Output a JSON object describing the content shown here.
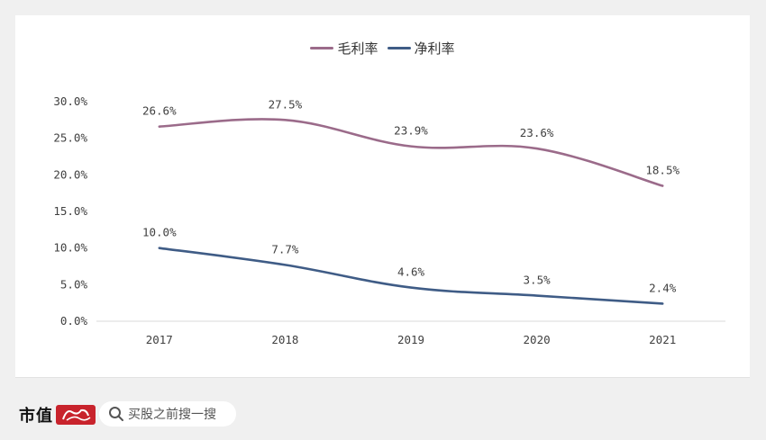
{
  "legend": {
    "gross_label": "毛利率",
    "net_label": "净利率"
  },
  "footer": {
    "brand": "市值",
    "search_placeholder": "买股之前搜一搜"
  },
  "colors": {
    "gross": "#9b6b8a",
    "net": "#3f5c86",
    "axis": "#d9d9d9",
    "text": "#404040",
    "brand_red": "#c8232c"
  },
  "icons": [
    "search-icon"
  ],
  "chart_data": {
    "type": "line",
    "categories": [
      "2017",
      "2018",
      "2019",
      "2020",
      "2021"
    ],
    "series": [
      {
        "name": "毛利率",
        "values": [
          26.6,
          27.5,
          23.9,
          23.6,
          18.5
        ],
        "labels": [
          "26.6%",
          "27.5%",
          "23.9%",
          "23.6%",
          "18.5%"
        ]
      },
      {
        "name": "净利率",
        "values": [
          10.0,
          7.7,
          4.6,
          3.5,
          2.4
        ],
        "labels": [
          "10.0%",
          "7.7%",
          "4.6%",
          "3.5%",
          "2.4%"
        ]
      }
    ],
    "yticks": [
      "0.0%",
      "5.0%",
      "10.0%",
      "15.0%",
      "20.0%",
      "25.0%",
      "30.0%"
    ],
    "ylim": [
      0,
      30
    ],
    "smooth": true,
    "grid": false,
    "legend_position": "top"
  }
}
